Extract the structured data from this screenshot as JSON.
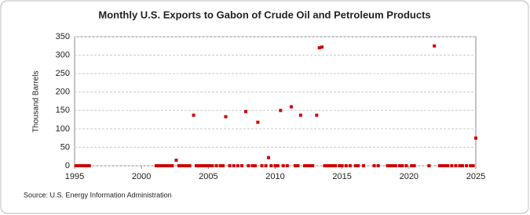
{
  "chart_data": {
    "type": "scatter",
    "title": "Monthly U.S. Exports to Gabon of Crude Oil and Petroleum Products",
    "y_label": "Thousand Barrels",
    "source": "Source: U.S. Energy Information Administration",
    "xlim": [
      1995,
      2025
    ],
    "xticks": [
      1995,
      2000,
      2005,
      2010,
      2015,
      2020,
      2025
    ],
    "ylim": [
      0,
      350
    ],
    "yticks": [
      0,
      50,
      100,
      150,
      200,
      250,
      300,
      350
    ],
    "grid": true,
    "series": [
      {
        "color": "#cc0000",
        "x": [
          1995.1,
          1995.3,
          1995.5,
          1995.7,
          1995.9,
          1996.1,
          2001.1,
          2001.3,
          2001.5,
          2001.7,
          2001.9,
          2002.1,
          2002.3,
          2002.6,
          2002.8,
          2003.0,
          2003.2,
          2003.4,
          2003.6,
          2003.9,
          2004.1,
          2004.3,
          2004.5,
          2004.7,
          2004.9,
          2005.1,
          2005.3,
          2005.6,
          2005.9,
          2006.1,
          2006.3,
          2006.6,
          2006.9,
          2007.2,
          2007.5,
          2007.8,
          2008.0,
          2008.3,
          2008.5,
          2008.7,
          2009.0,
          2009.3,
          2009.5,
          2009.7,
          2010.0,
          2010.2,
          2010.4,
          2010.6,
          2010.9,
          2011.2,
          2011.5,
          2011.7,
          2011.9,
          2012.2,
          2012.4,
          2012.6,
          2012.8,
          2013.1,
          2013.3,
          2013.5,
          2013.7,
          2013.9,
          2014.1,
          2014.3,
          2014.5,
          2014.8,
          2015.0,
          2015.3,
          2015.6,
          2016.0,
          2016.2,
          2016.6,
          2017.4,
          2017.7,
          2018.4,
          2018.6,
          2018.8,
          2019.0,
          2019.3,
          2019.5,
          2019.8,
          2020.2,
          2020.4,
          2021.5,
          2021.9,
          2022.3,
          2022.5,
          2022.7,
          2022.9,
          2023.2,
          2023.5,
          2023.8,
          2024.0,
          2024.3,
          2024.6,
          2024.8,
          2025.0
        ],
        "values": [
          0,
          0,
          0,
          0,
          0,
          0,
          0,
          0,
          0,
          0,
          0,
          0,
          0,
          15,
          0,
          0,
          0,
          0,
          0,
          137,
          0,
          0,
          0,
          0,
          0,
          0,
          0,
          0,
          0,
          0,
          133,
          0,
          0,
          0,
          0,
          147,
          0,
          0,
          0,
          118,
          0,
          0,
          22,
          0,
          0,
          0,
          150,
          0,
          0,
          160,
          0,
          0,
          137,
          0,
          0,
          0,
          0,
          137,
          320,
          322,
          0,
          0,
          0,
          0,
          0,
          0,
          0,
          0,
          0,
          0,
          0,
          0,
          0,
          0,
          0,
          0,
          0,
          0,
          0,
          0,
          0,
          0,
          0,
          0,
          325,
          0,
          0,
          0,
          0,
          0,
          0,
          0,
          0,
          0,
          0,
          0,
          75
        ]
      }
    ]
  }
}
